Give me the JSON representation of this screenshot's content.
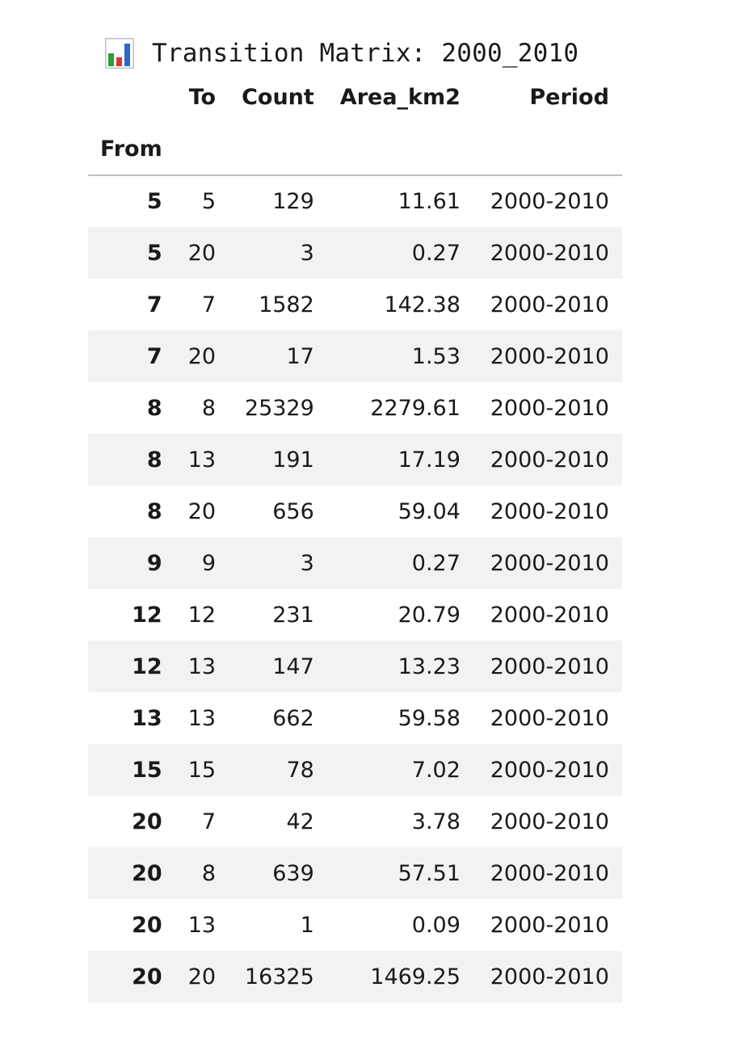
{
  "output": {
    "title_icon": "bar-chart-icon",
    "title": "Transition Matrix: 2000_2010",
    "colors": {
      "icon_green": "#2e9e3a",
      "icon_red": "#d6382f",
      "icon_blue": "#2f64c8",
      "row_stripe": "#f2f2f2",
      "header_rule": "#bdbdbd"
    },
    "table": {
      "index_name": "From",
      "columns": [
        "To",
        "Count",
        "Area_km2",
        "Period"
      ],
      "rows": [
        {
          "from": "5",
          "to": "5",
          "count": "129",
          "area_km2": "11.61",
          "period": "2000-2010"
        },
        {
          "from": "5",
          "to": "20",
          "count": "3",
          "area_km2": "0.27",
          "period": "2000-2010"
        },
        {
          "from": "7",
          "to": "7",
          "count": "1582",
          "area_km2": "142.38",
          "period": "2000-2010"
        },
        {
          "from": "7",
          "to": "20",
          "count": "17",
          "area_km2": "1.53",
          "period": "2000-2010"
        },
        {
          "from": "8",
          "to": "8",
          "count": "25329",
          "area_km2": "2279.61",
          "period": "2000-2010"
        },
        {
          "from": "8",
          "to": "13",
          "count": "191",
          "area_km2": "17.19",
          "period": "2000-2010"
        },
        {
          "from": "8",
          "to": "20",
          "count": "656",
          "area_km2": "59.04",
          "period": "2000-2010"
        },
        {
          "from": "9",
          "to": "9",
          "count": "3",
          "area_km2": "0.27",
          "period": "2000-2010"
        },
        {
          "from": "12",
          "to": "12",
          "count": "231",
          "area_km2": "20.79",
          "period": "2000-2010"
        },
        {
          "from": "12",
          "to": "13",
          "count": "147",
          "area_km2": "13.23",
          "period": "2000-2010"
        },
        {
          "from": "13",
          "to": "13",
          "count": "662",
          "area_km2": "59.58",
          "period": "2000-2010"
        },
        {
          "from": "15",
          "to": "15",
          "count": "78",
          "area_km2": "7.02",
          "period": "2000-2010"
        },
        {
          "from": "20",
          "to": "7",
          "count": "42",
          "area_km2": "3.78",
          "period": "2000-2010"
        },
        {
          "from": "20",
          "to": "8",
          "count": "639",
          "area_km2": "57.51",
          "period": "2000-2010"
        },
        {
          "from": "20",
          "to": "13",
          "count": "1",
          "area_km2": "0.09",
          "period": "2000-2010"
        },
        {
          "from": "20",
          "to": "20",
          "count": "16325",
          "area_km2": "1469.25",
          "period": "2000-2010"
        }
      ]
    }
  }
}
